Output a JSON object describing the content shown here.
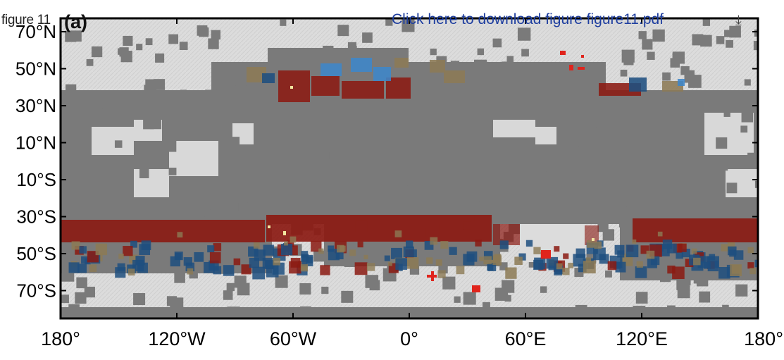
{
  "header": {
    "figure_label": "figure 11",
    "download_link": "Click here to download figure figure11.pdf",
    "download_icon": "download-icon"
  },
  "map": {
    "panel_label": "(a)",
    "projection": "equirectangular",
    "longitude_ticks": [
      "180°",
      "120°W",
      "60°W",
      "0°",
      "60°E",
      "120°E",
      "180°"
    ],
    "latitude_ticks": [
      "70°N",
      "50°N",
      "30°N",
      "10°N",
      "10°S",
      "30°S",
      "50°S",
      "70°S"
    ],
    "colors": {
      "background_terrain": "#dcdcdc",
      "no_data_gray": "#7a7a7a",
      "red": "#8b1a12",
      "blue": "#1e4f7f",
      "light_blue": "#3d86c9",
      "bright_red": "#e0241c",
      "tan": "#8c7a55",
      "yellow": "#f2e6a0"
    }
  }
}
